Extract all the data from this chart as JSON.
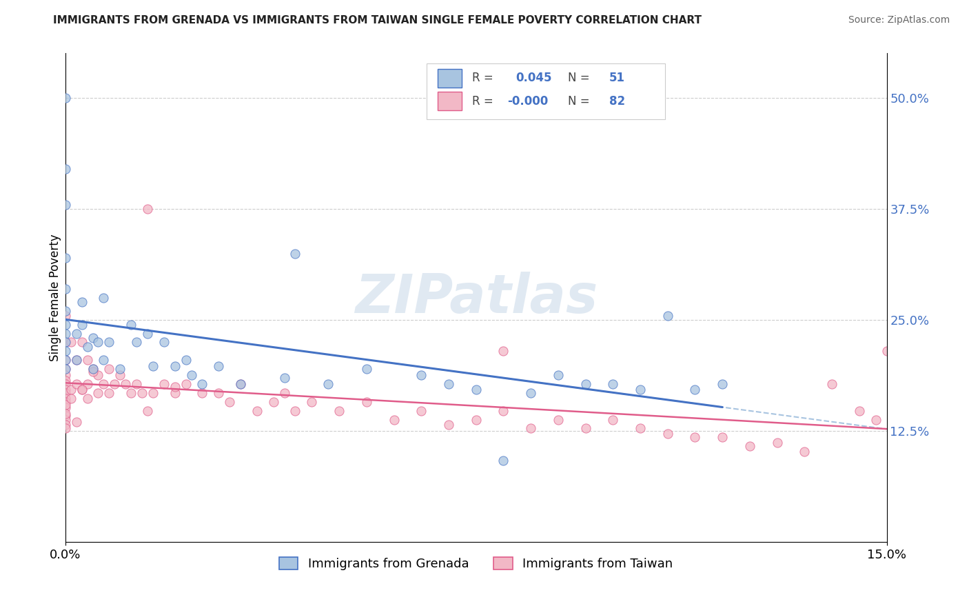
{
  "title": "IMMIGRANTS FROM GRENADA VS IMMIGRANTS FROM TAIWAN SINGLE FEMALE POVERTY CORRELATION CHART",
  "source": "Source: ZipAtlas.com",
  "ylabel": "Single Female Poverty",
  "xlim": [
    0.0,
    0.15
  ],
  "ylim": [
    0.0,
    0.55
  ],
  "xticks": [
    0.0,
    0.15
  ],
  "xtick_labels": [
    "0.0%",
    "15.0%"
  ],
  "yticks": [
    0.125,
    0.25,
    0.375,
    0.5
  ],
  "ytick_labels_right": [
    "12.5%",
    "25.0%",
    "37.5%",
    "50.0%"
  ],
  "R_grenada": 0.045,
  "N_grenada": 51,
  "R_taiwan": -0.0,
  "N_taiwan": 82,
  "color_grenada": "#a8c4e0",
  "color_taiwan": "#f2b8c6",
  "line_color_grenada": "#4472c4",
  "line_color_taiwan": "#e05c8a",
  "watermark": "ZIPatlas",
  "grenada_x": [
    0.0,
    0.0,
    0.0,
    0.0,
    0.0,
    0.0,
    0.0,
    0.0,
    0.0,
    0.0,
    0.0,
    0.0,
    0.002,
    0.002,
    0.003,
    0.003,
    0.004,
    0.005,
    0.005,
    0.006,
    0.007,
    0.007,
    0.008,
    0.01,
    0.012,
    0.013,
    0.015,
    0.016,
    0.018,
    0.02,
    0.022,
    0.023,
    0.025,
    0.028,
    0.032,
    0.04,
    0.042,
    0.048,
    0.055,
    0.065,
    0.07,
    0.075,
    0.08,
    0.085,
    0.09,
    0.095,
    0.1,
    0.105,
    0.11,
    0.115,
    0.12
  ],
  "grenada_y": [
    0.5,
    0.42,
    0.38,
    0.32,
    0.285,
    0.26,
    0.245,
    0.235,
    0.225,
    0.215,
    0.205,
    0.195,
    0.235,
    0.205,
    0.27,
    0.245,
    0.22,
    0.23,
    0.195,
    0.225,
    0.275,
    0.205,
    0.225,
    0.195,
    0.245,
    0.225,
    0.235,
    0.198,
    0.225,
    0.198,
    0.205,
    0.188,
    0.178,
    0.198,
    0.178,
    0.185,
    0.325,
    0.178,
    0.195,
    0.188,
    0.178,
    0.172,
    0.092,
    0.168,
    0.188,
    0.178,
    0.178,
    0.172,
    0.255,
    0.172,
    0.178
  ],
  "taiwan_x": [
    0.0,
    0.0,
    0.0,
    0.0,
    0.0,
    0.0,
    0.0,
    0.0,
    0.0,
    0.0,
    0.0,
    0.0,
    0.0,
    0.0,
    0.0,
    0.0,
    0.001,
    0.001,
    0.002,
    0.002,
    0.003,
    0.003,
    0.004,
    0.004,
    0.005,
    0.006,
    0.006,
    0.007,
    0.008,
    0.008,
    0.009,
    0.01,
    0.011,
    0.012,
    0.013,
    0.014,
    0.015,
    0.016,
    0.018,
    0.02,
    0.022,
    0.025,
    0.028,
    0.03,
    0.032,
    0.035,
    0.038,
    0.04,
    0.042,
    0.045,
    0.05,
    0.055,
    0.06,
    0.065,
    0.07,
    0.075,
    0.08,
    0.085,
    0.09,
    0.095,
    0.1,
    0.105,
    0.11,
    0.115,
    0.12,
    0.125,
    0.13,
    0.135,
    0.14,
    0.145,
    0.148,
    0.15,
    0.0,
    0.0,
    0.001,
    0.002,
    0.003,
    0.004,
    0.005,
    0.015,
    0.02,
    0.08
  ],
  "taiwan_y": [
    0.255,
    0.225,
    0.205,
    0.195,
    0.188,
    0.182,
    0.178,
    0.172,
    0.168,
    0.162,
    0.158,
    0.152,
    0.142,
    0.138,
    0.132,
    0.128,
    0.225,
    0.172,
    0.205,
    0.178,
    0.225,
    0.172,
    0.205,
    0.178,
    0.195,
    0.188,
    0.168,
    0.178,
    0.195,
    0.168,
    0.178,
    0.188,
    0.178,
    0.168,
    0.178,
    0.168,
    0.375,
    0.168,
    0.178,
    0.168,
    0.178,
    0.168,
    0.168,
    0.158,
    0.178,
    0.148,
    0.158,
    0.168,
    0.148,
    0.158,
    0.148,
    0.158,
    0.138,
    0.148,
    0.132,
    0.138,
    0.148,
    0.128,
    0.138,
    0.128,
    0.138,
    0.128,
    0.122,
    0.118,
    0.118,
    0.108,
    0.112,
    0.102,
    0.178,
    0.148,
    0.138,
    0.215,
    0.155,
    0.145,
    0.162,
    0.135,
    0.172,
    0.162,
    0.192,
    0.148,
    0.175,
    0.215
  ]
}
